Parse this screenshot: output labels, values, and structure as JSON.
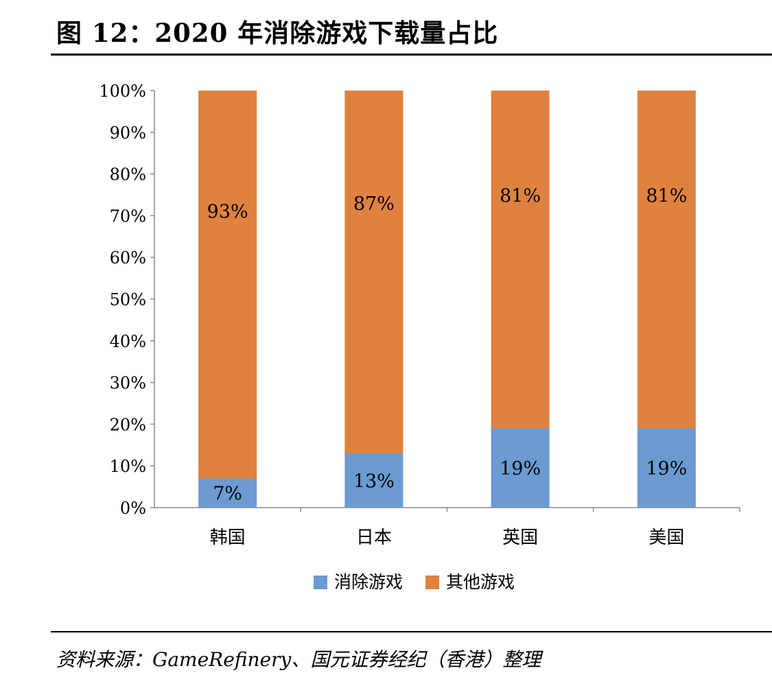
{
  "title": "图 12：2020 年消除游戏下载量占比",
  "source": "资料来源：GameRefinery、国元证券经纪（香港）整理",
  "chart_data": {
    "type": "bar",
    "stacked": true,
    "categories": [
      "韩国",
      "日本",
      "英国",
      "美国"
    ],
    "series": [
      {
        "name": "消除游戏",
        "values": [
          7,
          13,
          19,
          19
        ],
        "labels": [
          "7%",
          "13%",
          "19%",
          "19%"
        ],
        "color": "#6b9bd1"
      },
      {
        "name": "其他游戏",
        "values": [
          93,
          87,
          81,
          81
        ],
        "labels": [
          "93%",
          "87%",
          "81%",
          "81%"
        ],
        "color": "#e0823f"
      }
    ],
    "yticks": [
      "0%",
      "10%",
      "20%",
      "30%",
      "40%",
      "50%",
      "60%",
      "70%",
      "80%",
      "90%",
      "100%"
    ],
    "ylim": [
      0,
      100
    ],
    "legend": "bottom",
    "grid": false
  }
}
